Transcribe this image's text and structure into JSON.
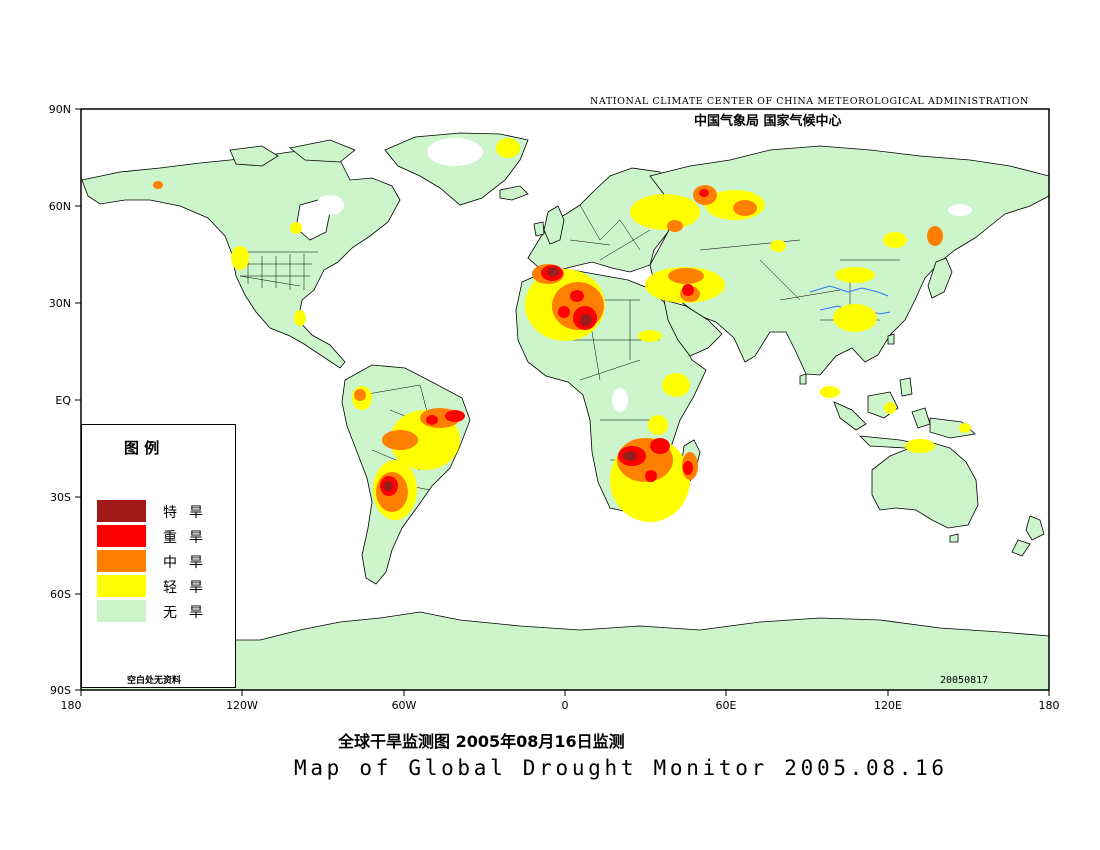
{
  "agency": {
    "english": "NATIONAL CLIMATE CENTER OF CHINA METEOROLOGICAL ADMINISTRATION",
    "chinese": "中国气象局   国家气候中心"
  },
  "map": {
    "date_stamp": "20050817",
    "lat_labels": [
      "90N",
      "60N",
      "30N",
      "EQ",
      "30S",
      "60S",
      "90S"
    ],
    "lon_labels": [
      "180",
      "120W",
      "60W",
      "0",
      "60E",
      "120E",
      "180"
    ],
    "colors": {
      "land": "#ccf5cc",
      "ocean": "#ffffff",
      "extreme": "#9b1c1c",
      "severe": "#f00000",
      "moderate": "#ff8000",
      "light": "#ffff00"
    }
  },
  "legend": {
    "title": "图    例",
    "items": [
      {
        "label": "特旱",
        "color": "#a11919"
      },
      {
        "label": "重旱",
        "color": "#ff0000"
      },
      {
        "label": "中旱",
        "color": "#ff8000"
      },
      {
        "label": "轻旱",
        "color": "#ffff00"
      },
      {
        "label": "无旱",
        "color": "#ccf5cc"
      }
    ],
    "note": "空白处无资料"
  },
  "caption": {
    "chinese": "全球干旱监测图    2005年08月16日监测",
    "english": "Map of Global Drought Monitor 2005.08.16"
  }
}
